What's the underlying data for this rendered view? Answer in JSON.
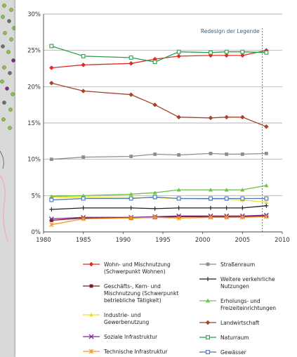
{
  "colors": {
    "grid": "#9a9a9a",
    "axis": "#444444",
    "marker_line": "#555555",
    "annotation": "#44627a",
    "map_bg": "#d9d9d9",
    "map_dot_green": "#8bc34a",
    "map_dot_purple": "#7b2d8e"
  },
  "map": {
    "icon": "map-thumbnail-icon"
  },
  "chart_data": {
    "type": "line",
    "xlim": [
      1980,
      2010
    ],
    "ylim": [
      0,
      30
    ],
    "xticks": [
      1980,
      1985,
      1990,
      1995,
      2000,
      2005,
      2010
    ],
    "yticks": [
      0,
      5,
      10,
      15,
      20,
      25,
      30
    ],
    "ytick_labels": [
      "0%",
      "5%",
      "10%",
      "15%",
      "20%",
      "25%",
      "30%"
    ],
    "grid": "horizontal",
    "legend_placement": "bottom",
    "annotation": {
      "text": "Redesign der Legende",
      "x": 2007.5
    },
    "series": [
      {
        "name": "Wohn- und Mischnutzung (Schwerpunkt Wohnen)",
        "name_lines": [
          "Wohn- und Mischnutzung",
          "(Schwerpunkt Wohnen)"
        ],
        "color": "#e52a25",
        "marker": "diamond",
        "x": [
          1981,
          1985,
          1991,
          1994,
          1997,
          2001,
          2003,
          2005,
          2008
        ],
        "y": [
          22.6,
          23.0,
          23.2,
          23.8,
          24.2,
          24.3,
          24.3,
          24.3,
          25.0
        ]
      },
      {
        "name": "Geschäfts-, Kern- und Mischnutzung (Schwerpunkt betriebliche Tätigkeit)",
        "name_lines": [
          "Geschäfts-, Kern- und",
          "Mischnutzung (Schwerpunkt",
          "betriebliche Tätigkeit)"
        ],
        "color": "#7a1a22",
        "marker": "square",
        "x": [
          1981,
          1985,
          1991,
          1994,
          1997,
          2001,
          2003,
          2005,
          2008
        ],
        "y": [
          1.6,
          1.9,
          1.9,
          2.0,
          2.1,
          2.1,
          2.1,
          2.1,
          2.2
        ]
      },
      {
        "name": "Industrie- und Gewerbenutzung",
        "name_lines": [
          "Industrie- und",
          "Gewerbenutzung"
        ],
        "color": "#f0e125",
        "marker": "triangle",
        "x": [
          1981,
          1985,
          1991,
          1994,
          1997,
          2001,
          2003,
          2005,
          2008
        ],
        "y": [
          4.8,
          4.8,
          4.7,
          4.7,
          4.6,
          4.5,
          4.5,
          4.4,
          4.1
        ]
      },
      {
        "name": "Soziale Infrastruktur",
        "name_lines": [
          "Soziale Infrastruktur"
        ],
        "color": "#7a2f8e",
        "marker": "x",
        "x": [
          1981,
          1985,
          1991,
          1994,
          1997,
          2001,
          2003,
          2005,
          2008
        ],
        "y": [
          1.8,
          2.0,
          2.0,
          2.1,
          2.2,
          2.2,
          2.2,
          2.2,
          2.3
        ]
      },
      {
        "name": "Technische Infrastruktur",
        "name_lines": [
          "Technische Infrastruktur"
        ],
        "color": "#f39a2a",
        "marker": "asterisk",
        "x": [
          1981,
          1985,
          1991,
          1994,
          1997,
          2001,
          2003,
          2005,
          2008
        ],
        "y": [
          1.0,
          1.8,
          1.9,
          2.0,
          1.9,
          2.0,
          2.0,
          2.0,
          2.1
        ]
      },
      {
        "name": "Straßenraum",
        "name_lines": [
          "Straßenraum"
        ],
        "color": "#8e8e8e",
        "marker": "square",
        "x": [
          1981,
          1985,
          1991,
          1994,
          1997,
          2001,
          2003,
          2005,
          2008
        ],
        "y": [
          10.0,
          10.3,
          10.4,
          10.7,
          10.6,
          10.8,
          10.7,
          10.7,
          10.8
        ]
      },
      {
        "name": "Weitere verkehrliche Nutzungen",
        "name_lines": [
          "Weitere verkehrliche",
          "Nutzungen"
        ],
        "color": "#222222",
        "marker": "plus",
        "x": [
          1981,
          1985,
          1991,
          1994,
          1997,
          2001,
          2003,
          2005,
          2008
        ],
        "y": [
          3.1,
          3.3,
          3.3,
          3.2,
          3.3,
          3.3,
          3.3,
          3.3,
          3.6
        ]
      },
      {
        "name": "Erholungs- und Freizeiteinrichtungen",
        "name_lines": [
          "Erholungs- und",
          "Freizeiteinrichtungen"
        ],
        "color": "#6cc24a",
        "marker": "triangle",
        "x": [
          1981,
          1985,
          1991,
          1994,
          1997,
          2001,
          2003,
          2005,
          2008
        ],
        "y": [
          4.9,
          5.0,
          5.2,
          5.4,
          5.8,
          5.8,
          5.8,
          5.8,
          6.4
        ]
      },
      {
        "name": "Landwirtschaft",
        "name_lines": [
          "Landwirtschaft"
        ],
        "color": "#a5432a",
        "marker": "diamond",
        "x": [
          1981,
          1985,
          1991,
          1994,
          1997,
          2001,
          2003,
          2005,
          2008
        ],
        "y": [
          20.5,
          19.4,
          18.9,
          17.5,
          15.8,
          15.7,
          15.8,
          15.8,
          14.5
        ]
      },
      {
        "name": "Naturraum",
        "name_lines": [
          "Naturraum"
        ],
        "color": "#2e9e4e",
        "marker": "square-open",
        "x": [
          1981,
          1985,
          1991,
          1994,
          1997,
          2001,
          2003,
          2005,
          2008
        ],
        "y": [
          25.6,
          24.2,
          24.0,
          23.4,
          24.8,
          24.7,
          24.8,
          24.8,
          24.7
        ]
      },
      {
        "name": "Gewässer",
        "name_lines": [
          "Gewässer"
        ],
        "color": "#4a74b4",
        "marker": "square-open",
        "x": [
          1981,
          1985,
          1991,
          1994,
          1997,
          2001,
          2003,
          2005,
          2008
        ],
        "y": [
          4.4,
          4.6,
          4.6,
          4.8,
          4.6,
          4.6,
          4.6,
          4.6,
          4.6
        ]
      }
    ]
  }
}
